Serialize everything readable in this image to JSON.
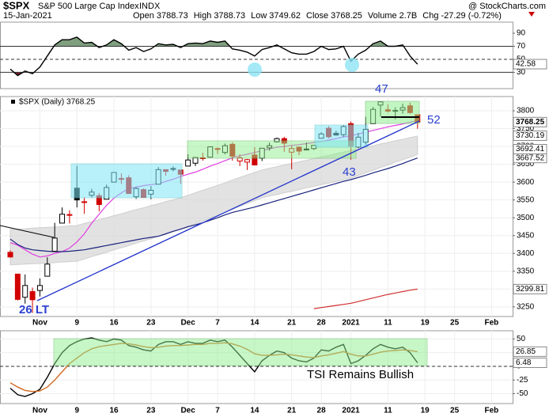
{
  "header": {
    "symbol": "$SPX",
    "name": "S&P 500 Large Cap Index",
    "exchange": "INDX",
    "credit": "@ StockCharts.com",
    "date": "15-Jan-2021",
    "quote": [
      {
        "label": "Open",
        "value": "3788.73"
      },
      {
        "label": "High",
        "value": "3788.73"
      },
      {
        "label": "Low",
        "value": "3749.62"
      },
      {
        "label": "Close",
        "value": "3768.25"
      },
      {
        "label": "Volume",
        "value": "2.7B"
      },
      {
        "label": "Chg",
        "value": "-27.29 (-0.72%)"
      }
    ]
  },
  "chart_data": [
    {
      "type": "line",
      "color": "#000000",
      "ylim": [
        5,
        107
      ],
      "yticks": [
        30,
        50,
        70,
        90
      ],
      "overbought": 70,
      "oversold": 30,
      "midline": 50,
      "overbought_color": "#7f9f7f",
      "oversold_color": "#7a1f2b",
      "values": [
        35,
        25,
        32,
        28,
        38,
        55,
        72,
        80,
        80,
        84,
        75,
        76,
        68,
        72,
        80,
        74,
        64,
        68,
        62,
        66,
        74,
        72,
        73,
        68,
        74,
        75,
        74,
        78,
        76,
        78,
        66,
        64,
        61,
        55,
        65,
        68,
        72,
        66,
        60,
        58,
        58,
        62,
        70,
        65,
        66,
        70,
        47,
        58,
        64,
        74,
        78,
        70,
        70,
        72,
        55,
        42.58,
        null,
        null,
        null,
        null,
        null,
        null,
        null,
        null,
        null,
        null,
        null,
        null
      ]
    },
    {
      "type": "candlestick",
      "legend": "$SPX (Daily) 3768.25",
      "ylim": [
        3223,
        3840
      ],
      "yticks": [
        3250,
        3300,
        3350,
        3400,
        3450,
        3500,
        3550,
        3600,
        3650,
        3700,
        3750,
        3800
      ],
      "grid": true,
      "categories": [
        null,
        null,
        null,
        null,
        "Nov",
        null,
        null,
        null,
        null,
        "9",
        null,
        null,
        null,
        null,
        "16",
        null,
        null,
        null,
        null,
        "23",
        null,
        null,
        null,
        null,
        "Dec",
        null,
        null,
        null,
        "7",
        null,
        null,
        null,
        null,
        "14",
        null,
        null,
        null,
        null,
        "21",
        null,
        null,
        null,
        "28",
        null,
        null,
        null,
        "2021",
        null,
        null,
        null,
        null,
        "11",
        null,
        null,
        null,
        null,
        "19",
        null,
        null,
        null,
        "25",
        null,
        null,
        null,
        null,
        "Feb",
        null,
        null
      ],
      "open": [
        3403,
        3342,
        3277,
        3293,
        3296,
        3336,
        3406,
        3485,
        3508,
        3583,
        3543,
        3563,
        3562,
        3552,
        3600,
        3610,
        3612,
        3559,
        3579,
        3566,
        3594,
        3635,
        3638,
        3634,
        3645,
        3653,
        3668,
        3670,
        3694,
        3683,
        3706,
        3659,
        3656,
        3676,
        3667,
        3696,
        3713,
        3722,
        3684,
        3698,
        3693,
        3694,
        3723,
        3751,
        3737,
        3733,
        3764,
        3698,
        3712,
        3764,
        3816,
        3803,
        3801,
        3802,
        3814,
        3788.73,
        null,
        null,
        null,
        null,
        null,
        null,
        null,
        null,
        null,
        null,
        null,
        null
      ],
      "high": [
        3409,
        3342,
        3341,
        3304,
        3330,
        3389,
        3486,
        3529,
        3521,
        3646,
        3557,
        3581,
        3569,
        3593,
        3628,
        3624,
        3619,
        3586,
        3582,
        3589,
        3642,
        3635,
        3644,
        3634,
        3678,
        3670,
        3682,
        3699,
        3697,
        3708,
        3712,
        3678,
        3665,
        3698,
        3695,
        3711,
        3725,
        3727,
        3702,
        3698,
        3711,
        3703,
        3740,
        3757,
        3744,
        3760,
        3770,
        3738,
        3783,
        3811,
        3826,
        3818,
        3810,
        3820,
        3823,
        3788.73,
        null,
        null,
        null,
        null,
        null,
        null,
        null,
        null,
        null,
        null,
        null,
        null
      ],
      "low": [
        3388,
        3268,
        3259,
        3233,
        3279,
        3336,
        3406,
        3485,
        3484,
        3529,
        3511,
        3557,
        3518,
        3552,
        3600,
        3595,
        3567,
        3553,
        3556,
        3552,
        3594,
        3618,
        3630,
        3595,
        3645,
        3645,
        3660,
        3670,
        3679,
        3678,
        3660,
        3645,
        3634,
        3647,
        3659,
        3688,
        3711,
        3685,
        3636,
        3676,
        3689,
        3690,
        3723,
        3723,
        3730,
        3726,
        3663,
        3695,
        3705,
        3764,
        3783,
        3795,
        3776,
        3792,
        3792,
        3749.62,
        null,
        null,
        null,
        null,
        null,
        null,
        null,
        null,
        null,
        null,
        null,
        null
      ],
      "close": [
        3390,
        3271,
        3310,
        3270,
        3310,
        3370,
        3443,
        3510,
        3509,
        3550,
        3545,
        3572,
        3537,
        3585,
        3627,
        3610,
        3568,
        3582,
        3557,
        3577,
        3635,
        3630,
        3638,
        3622,
        3662,
        3669,
        3666,
        3699,
        3692,
        3702,
        3673,
        3668,
        3663,
        3648,
        3695,
        3702,
        3722,
        3709,
        3694,
        3687,
        3690,
        3703,
        3735,
        3727,
        3732,
        3756,
        3701,
        3726,
        3748,
        3804,
        3825,
        3799,
        3801,
        3809,
        3795,
        3768.25,
        null,
        null,
        null,
        null,
        null,
        null,
        null,
        null,
        null,
        null,
        null,
        null
      ],
      "band": {
        "color": "#d6d6d6",
        "upper": [
          3467,
          3468,
          3469,
          3471,
          3472,
          3473,
          3474,
          3475,
          3477,
          3478,
          3484,
          3489,
          3495,
          3500,
          3506,
          3511,
          3517,
          3523,
          3528,
          3534,
          3539,
          3545,
          3550,
          3556,
          3563,
          3570,
          3577,
          3584,
          3591,
          3598,
          3606,
          3613,
          3620,
          3627,
          3634,
          3639,
          3643,
          3648,
          3652,
          3657,
          3661,
          3666,
          3671,
          3675,
          3680,
          3684,
          3689,
          3693,
          3698,
          3702,
          3707,
          3711,
          3716,
          3720,
          3725,
          3729,
          null,
          null,
          null,
          null,
          null,
          null,
          null,
          null,
          null,
          null,
          null,
          null
        ],
        "lower": [
          3368,
          3369,
          3370,
          3371,
          3372,
          3373,
          3374,
          3376,
          3377,
          3378,
          3384,
          3391,
          3397,
          3403,
          3410,
          3416,
          3422,
          3429,
          3435,
          3441,
          3448,
          3454,
          3461,
          3467,
          3475,
          3483,
          3491,
          3499,
          3507,
          3515,
          3524,
          3532,
          3540,
          3548,
          3556,
          3561,
          3565,
          3570,
          3574,
          3579,
          3584,
          3588,
          3593,
          3597,
          3602,
          3606,
          3611,
          3618,
          3626,
          3633,
          3641,
          3648,
          3656,
          3663,
          3670,
          3678,
          null,
          null,
          null,
          null,
          null,
          null,
          null,
          null,
          null,
          null,
          null,
          null
        ]
      },
      "overlays": [
        {
          "color": "#e040e0",
          "values": [
            3430,
            3423,
            3410,
            3398,
            3390,
            3393,
            3400,
            3405,
            3415,
            3432,
            3455,
            3485,
            3510,
            3535,
            3555,
            3570,
            3582,
            3586,
            3590,
            3593,
            3595,
            3602,
            3608,
            3616,
            3622,
            3628,
            3636,
            3645,
            3652,
            3660,
            3668,
            3674,
            3678,
            3683,
            3688,
            3693,
            3698,
            3700,
            3703,
            3705,
            3708,
            3711,
            3714,
            3718,
            3722,
            3727,
            3730,
            3735,
            3740,
            3745,
            3750,
            3755,
            3759,
            3763,
            3768,
            3773,
            null,
            null,
            null,
            null,
            null,
            null,
            null,
            null,
            null,
            null,
            null,
            null
          ]
        },
        {
          "color": "#1a237e",
          "tagged": true,
          "values": [
            3440,
            3425,
            3415,
            3410,
            3408,
            3406,
            3405,
            3405,
            3406,
            3408,
            3410,
            3414,
            3418,
            3422,
            3426,
            3430,
            3434,
            3438,
            3442,
            3445,
            3448,
            3455,
            3462,
            3468,
            3475,
            3480,
            3486,
            3493,
            3500,
            3508,
            3515,
            3520,
            3525,
            3530,
            3536,
            3542,
            3548,
            3554,
            3560,
            3566,
            3572,
            3578,
            3584,
            3590,
            3596,
            3602,
            3607,
            3613,
            3619,
            3626,
            3632,
            3638,
            3645,
            3652,
            3660,
            3667.52,
            null,
            null,
            null,
            null,
            null,
            null,
            null,
            null,
            null,
            null,
            null,
            null
          ]
        },
        {
          "color": "#d32f2f",
          "tagged": true,
          "values": [
            null,
            null,
            null,
            null,
            null,
            null,
            null,
            null,
            null,
            null,
            null,
            null,
            null,
            null,
            null,
            null,
            null,
            null,
            null,
            null,
            null,
            null,
            null,
            null,
            null,
            null,
            null,
            null,
            null,
            null,
            null,
            null,
            null,
            null,
            null,
            null,
            null,
            null,
            null,
            null,
            null,
            3245,
            3248,
            3251,
            3254,
            3257,
            3260,
            3265,
            3270,
            3275,
            3280,
            3285,
            3289,
            3293,
            3297,
            3299.81,
            null,
            null,
            null,
            null,
            null,
            null,
            null,
            null,
            null,
            null,
            null,
            null
          ]
        }
      ],
      "price_labels": [
        3730.19,
        3692.41
      ],
      "annotations": [
        "26 LT",
        "47",
        "43",
        "52"
      ]
    },
    {
      "type": "line",
      "ylim": [
        -68,
        65
      ],
      "yticks": [
        -50,
        -25,
        0,
        25,
        50
      ],
      "midline": 0,
      "grid": true,
      "categories": [
        null,
        null,
        null,
        null,
        "Nov",
        null,
        null,
        null,
        null,
        "9",
        null,
        null,
        null,
        null,
        "16",
        null,
        null,
        null,
        null,
        "23",
        null,
        null,
        null,
        null,
        "Dec",
        null,
        null,
        null,
        "7",
        null,
        null,
        null,
        null,
        "14",
        null,
        null,
        null,
        null,
        "21",
        null,
        null,
        null,
        "28",
        null,
        null,
        null,
        "2021",
        null,
        null,
        null,
        null,
        "11",
        null,
        null,
        null,
        null,
        "19",
        null,
        null,
        null,
        "25",
        null,
        null,
        null,
        null,
        "Feb",
        null,
        null
      ],
      "series": [
        {
          "color": "#000000",
          "values": [
            -40,
            -52,
            -55,
            -50,
            -42,
            -20,
            5,
            25,
            38,
            45,
            50,
            52,
            48,
            45,
            50,
            48,
            38,
            35,
            30,
            28,
            40,
            45,
            45,
            40,
            45,
            42,
            42,
            48,
            45,
            48,
            35,
            20,
            5,
            -10,
            10,
            20,
            28,
            25,
            15,
            10,
            8,
            15,
            30,
            28,
            35,
            40,
            5,
            10,
            20,
            32,
            40,
            35,
            32,
            35,
            25,
            6.48,
            null,
            null,
            null,
            null,
            null,
            null,
            null,
            null,
            null,
            null,
            null,
            null
          ]
        },
        {
          "color": "#d2691e",
          "values": [
            -30,
            -38,
            -44,
            -46,
            -45,
            -38,
            -25,
            -10,
            5,
            15,
            25,
            32,
            36,
            38,
            40,
            42,
            41,
            39,
            36,
            34,
            35,
            37,
            38,
            38,
            39,
            40,
            40,
            42,
            42,
            43,
            41,
            37,
            31,
            23,
            20,
            20,
            21,
            22,
            21,
            19,
            17,
            16,
            19,
            21,
            24,
            27,
            22,
            19,
            19,
            22,
            26,
            28,
            29,
            30,
            29,
            26.85,
            null,
            null,
            null,
            null,
            null,
            null,
            null,
            null,
            null,
            null,
            null,
            null
          ]
        }
      ],
      "annotations": [
        "TSI Remains Bullish"
      ]
    }
  ]
}
